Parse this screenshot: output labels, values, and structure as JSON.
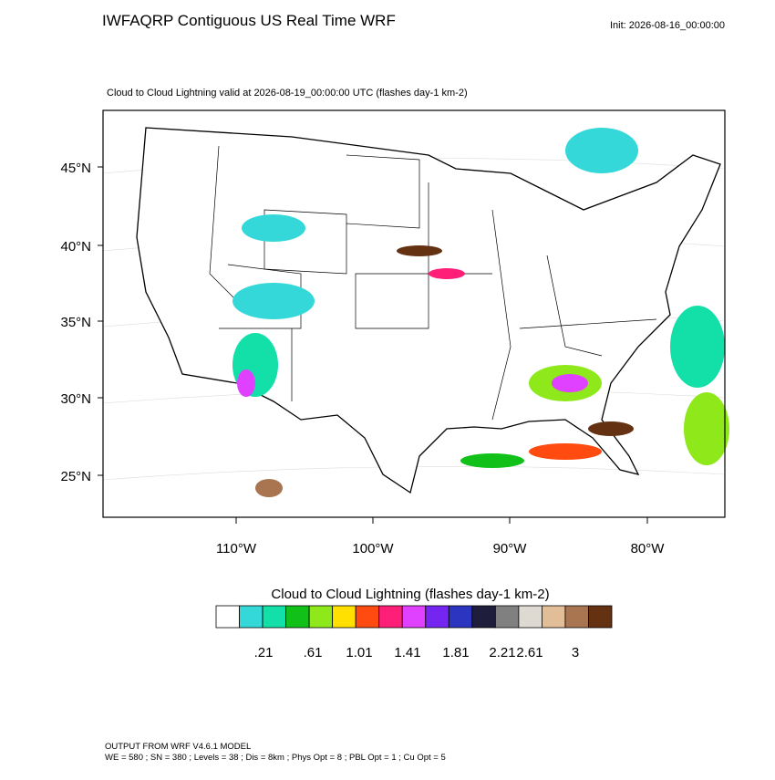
{
  "header": {
    "title": "IWFAQRP Contiguous US Real Time WRF",
    "init": "Init: 2026-08-16_00:00:00"
  },
  "map": {
    "subtitle": "Cloud to Cloud Lightning valid at 2026-08-19_00:00:00 UTC   (flashes day-1 km-2)",
    "lat_labels": [
      "45°N",
      "40°N",
      "35°N",
      "30°N",
      "25°N"
    ],
    "lon_labels": [
      "110°W",
      "100°W",
      "90°W",
      "80°W"
    ]
  },
  "colorbar": {
    "title": "Cloud to Cloud Lightning  (flashes day-1 km-2)",
    "colors": [
      "#ffffff",
      "#35d8d8",
      "#13e0a8",
      "#11c11a",
      "#8ee81a",
      "#ffe000",
      "#ff4a10",
      "#ff1e78",
      "#e040ff",
      "#7426f0",
      "#2c35c0",
      "#1e1e3c",
      "#808080",
      "#dedad2",
      "#e2be98",
      "#a87550",
      "#643212"
    ],
    "labels": [
      ".21",
      ".61",
      "1.01",
      "1.41",
      "1.81",
      "2.21",
      "2.61",
      "3"
    ]
  },
  "footer": {
    "lines": [
      "OUTPUT FROM WRF V4.6.1 MODEL",
      "WE = 580 ; SN = 380 ; Levels = 38 ; Dis = 8km ; Phys Opt = 8 ; PBL Opt = 1 ; Cu Opt = 5"
    ]
  }
}
